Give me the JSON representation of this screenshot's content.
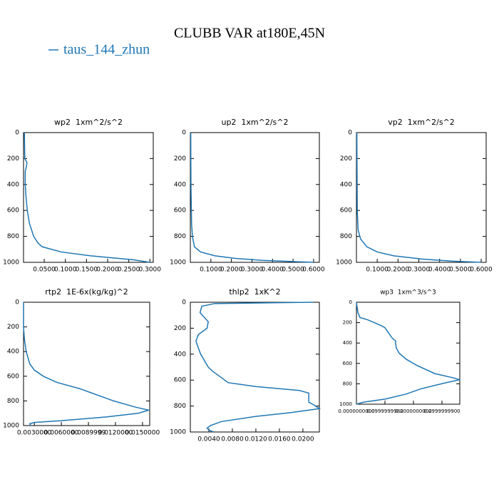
{
  "title": "CLUBB VAR at180E,45N",
  "legend": {
    "name": "taus_144_zhun",
    "color": "#1f77b4"
  },
  "chart_data": [
    {
      "type": "line",
      "title": "wp2  1xm^2/s^2",
      "x": [
        0.003,
        0.004,
        0.009,
        0.008,
        0.005,
        0.005,
        0.007,
        0.01,
        0.015,
        0.025,
        0.035,
        0.045,
        0.09,
        0.16,
        0.26,
        0.3
      ],
      "y": [
        0,
        200,
        230,
        260,
        300,
        400,
        500,
        600,
        700,
        800,
        850,
        880,
        920,
        950,
        980,
        1000
      ],
      "xlim": [
        0.001,
        0.308
      ],
      "ylim": [
        1000,
        0
      ],
      "xticks": [
        {
          "value": 0.05,
          "label": "0.0500"
        },
        {
          "value": 0.1,
          "label": "0.1000"
        },
        {
          "value": 0.15,
          "label": "0.1500"
        },
        {
          "value": 0.2,
          "label": "0.2000"
        },
        {
          "value": 0.25,
          "label": "0.2500"
        },
        {
          "value": 0.3,
          "label": "0.3000"
        }
      ],
      "yticks": [
        0,
        200,
        400,
        600,
        800,
        1000
      ]
    },
    {
      "type": "line",
      "title": "up2  1xm^2/s^2",
      "x": [
        0.002,
        0.003,
        0.006,
        0.01,
        0.02,
        0.05,
        0.12,
        0.22,
        0.35,
        0.6
      ],
      "y": [
        0,
        400,
        700,
        800,
        880,
        920,
        950,
        970,
        985,
        1000
      ],
      "xlim": [
        0,
        0.628
      ],
      "ylim": [
        1000,
        0
      ],
      "xticks": [
        {
          "value": 0.1,
          "label": "0.1000"
        },
        {
          "value": 0.2,
          "label": "0.2000"
        },
        {
          "value": 0.3,
          "label": "0.3000"
        },
        {
          "value": 0.4,
          "label": "0.4000"
        },
        {
          "value": 0.5,
          "label": "0.5000"
        },
        {
          "value": 0.6,
          "label": "0.6000"
        }
      ],
      "yticks": [
        0,
        200,
        400,
        600,
        800,
        1000
      ]
    },
    {
      "type": "line",
      "title": "vp2  1xm^2/s^2",
      "x": [
        0.002,
        0.004,
        0.008,
        0.02,
        0.05,
        0.1,
        0.18,
        0.32,
        0.45,
        0.6
      ],
      "y": [
        0,
        600,
        750,
        820,
        880,
        920,
        950,
        975,
        990,
        1000
      ],
      "xlim": [
        0,
        0.624
      ],
      "ylim": [
        1000,
        0
      ],
      "xticks": [
        {
          "value": 0.1,
          "label": "0.1000"
        },
        {
          "value": 0.2,
          "label": "0.2000"
        },
        {
          "value": 0.3,
          "label": "0.3000"
        },
        {
          "value": 0.4,
          "label": "0.4000"
        },
        {
          "value": 0.5,
          "label": "0.5000"
        },
        {
          "value": 0.6,
          "label": "0.6000"
        }
      ],
      "yticks": [
        0,
        200,
        400,
        600,
        800,
        1000
      ]
    },
    {
      "type": "line",
      "title": "rtp2  1E-6x(kg/kg)^2",
      "x": [
        0.0018,
        0.0018,
        0.0019,
        0.0021,
        0.0025,
        0.003,
        0.004,
        0.0055,
        0.008,
        0.0118,
        0.0142,
        0.0157,
        0.0145,
        0.011,
        0.006,
        0.003,
        0.0025,
        0.0026
      ],
      "y": [
        0,
        200,
        300,
        400,
        500,
        550,
        600,
        650,
        700,
        800,
        850,
        875,
        900,
        930,
        960,
        975,
        985,
        1000
      ],
      "xlim": [
        0.0018,
        0.0158
      ],
      "ylim": [
        1000,
        0
      ],
      "xticks": [
        {
          "value": 0.003,
          "label": "0.0030000"
        },
        {
          "value": 0.006,
          "label": "0.0060000"
        },
        {
          "value": 0.0089999,
          "label": "0.0089999"
        },
        {
          "value": 0.012,
          "label": "0.0120000"
        },
        {
          "value": 0.015,
          "label": "0.0150000"
        }
      ],
      "yticks": [
        0,
        200,
        400,
        600,
        800,
        1000
      ]
    },
    {
      "type": "line",
      "title": "thlp2  1xK^2",
      "x": [
        0.0218,
        0.005,
        0.0028,
        0.0025,
        0.0039,
        0.0037,
        0.0022,
        0.0018,
        0.0026,
        0.0039,
        0.0046,
        0.0073,
        0.012,
        0.0194,
        0.021,
        0.021,
        0.021,
        0.0218,
        0.0228,
        0.018,
        0.012,
        0.0061,
        0.0043,
        0.0037,
        0.004,
        0.0048
      ],
      "y": [
        0,
        10,
        30,
        80,
        150,
        200,
        250,
        300,
        400,
        500,
        530,
        620,
        650,
        680,
        700,
        720,
        770,
        790,
        820,
        850,
        880,
        920,
        950,
        970,
        985,
        1000
      ],
      "xlim": [
        0.00085,
        0.0228
      ],
      "ylim": [
        1000,
        0
      ],
      "xticks": [
        {
          "value": 0.004,
          "label": "0.0040"
        },
        {
          "value": 0.008,
          "label": "0.0080"
        },
        {
          "value": 0.012,
          "label": "0.0120"
        },
        {
          "value": 0.016,
          "label": "0.0160"
        },
        {
          "value": 0.02,
          "label": "0.0200"
        }
      ],
      "yticks": [
        0,
        200,
        400,
        600,
        800,
        1000
      ]
    },
    {
      "type": "line",
      "title": "wp3  1xm^3/s^3",
      "x": [
        0,
        0.005,
        0.0125,
        0.0375,
        0.0625,
        0.0875,
        0.1,
        0.1125,
        0.125,
        0.1375,
        0.1375,
        0.14,
        0.15,
        0.175,
        0.2125,
        0.275,
        0.3375,
        0.3625,
        0.3125,
        0.225,
        0.175,
        0.1,
        0.025,
        0
      ],
      "y": [
        0,
        100,
        150,
        170,
        200,
        230,
        250,
        300,
        350,
        380,
        400,
        450,
        500,
        560,
        620,
        700,
        740,
        760,
        790,
        850,
        900,
        950,
        980,
        1000
      ],
      "xlim": [
        0,
        0.3625
      ],
      "ylim": [
        1000,
        0
      ],
      "xticks": [
        {
          "value": 0,
          "label": "0.0000000000"
        },
        {
          "value": 0.099999998,
          "label": "0.0999999980"
        },
        {
          "value": 0.2,
          "label": "0.2000000000"
        },
        {
          "value": 0.29999999,
          "label": "0.2999999900"
        }
      ],
      "yticks": [
        0,
        200,
        400,
        600,
        800,
        1000
      ]
    }
  ]
}
